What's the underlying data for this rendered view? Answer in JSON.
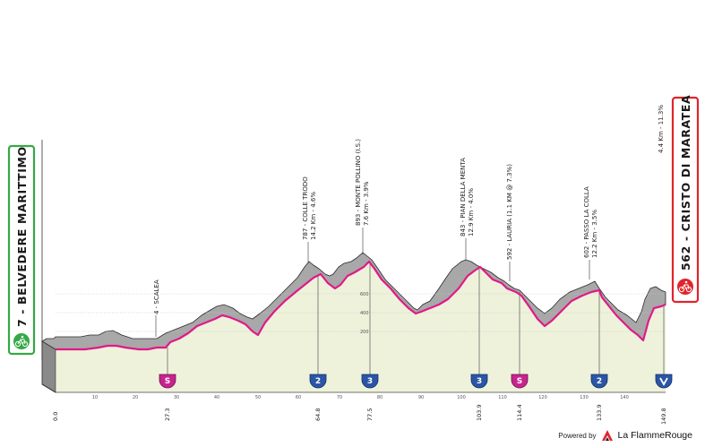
{
  "stage": {
    "start": {
      "label": "7 - BELVEDERE MARITTIMO",
      "color": "#35a845"
    },
    "finish": {
      "label": "562 - CRISTO DI MARATEA",
      "color": "#e0242c"
    },
    "start_km": "0.0",
    "finish_km": "149.8"
  },
  "climbs": [
    {
      "label": "4 - SCALEA"
    },
    {
      "label": "787 - COLLE TRODO",
      "sub": "14.2 Km - 4.6%"
    },
    {
      "label": "893 - MONTE POLLINO (I.S.)",
      "sub": "7.6 Km - 3.9%"
    },
    {
      "label": "843 - PIAN DELLA MENTA",
      "sub": "12.9 Km - 4.0%"
    },
    {
      "label": "592 - LAURIA (1.1 KM @ 7.3%)"
    },
    {
      "label": "602 - PASSO LA COLLA",
      "sub": "12.2 Km - 3.5%"
    },
    {
      "label": "4.4 Km - 11.3%"
    }
  ],
  "markers": [
    {
      "type": "S",
      "km": "27.3",
      "color": "#c8238f"
    },
    {
      "type": "2",
      "km": "64.8",
      "color": "#2b55a5"
    },
    {
      "type": "3",
      "km": "77.5",
      "color": "#2b55a5"
    },
    {
      "type": "3",
      "km": "103.9",
      "color": "#2b55a5"
    },
    {
      "type": "S",
      "km": "114.4",
      "color": "#c8238f"
    },
    {
      "type": "2",
      "km": "133.9",
      "color": "#2b55a5"
    },
    {
      "type": "finish",
      "km": "149.8",
      "color": "#2b55a5"
    }
  ],
  "axis": {
    "x_ticks": [
      "10",
      "20",
      "30",
      "40",
      "50",
      "60",
      "70",
      "80",
      "90",
      "100",
      "110",
      "120",
      "130",
      "140"
    ],
    "y_ticks": [
      "200",
      "400",
      "600"
    ]
  },
  "colors": {
    "profile_line": "#e0198a",
    "profile_fill": "#eef2da",
    "relief": "#a7a7a7"
  },
  "footer": {
    "powered_by": "Powered by",
    "brand": "La FlammeRouge",
    "logo": "flame-rouge-logo-icon"
  }
}
